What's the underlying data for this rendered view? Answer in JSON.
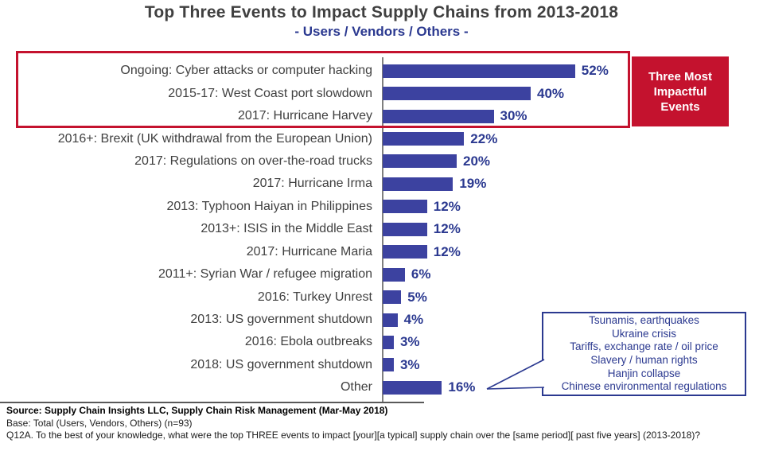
{
  "title": "Top Three Events to Impact Supply Chains from 2013-2018",
  "subtitle": "- Users / Vendors / Others -",
  "highlight_box": {
    "label": "Three Most Impactful Events"
  },
  "chart_data": {
    "type": "bar",
    "orientation": "horizontal",
    "unit": "%",
    "categories": [
      "Ongoing: Cyber attacks or computer hacking",
      "2015-17: West Coast port slowdown",
      "2017: Hurricane Harvey",
      "2016+: Brexit (UK withdrawal from the European Union)",
      "2017: Regulations on over-the-road trucks",
      "2017: Hurricane Irma",
      "2013: Typhoon Haiyan in Philippines",
      "2013+: ISIS in the Middle East",
      "2017: Hurricane Maria",
      "2011+: Syrian War / refugee migration",
      "2016: Turkey Unrest",
      "2013: US government shutdown",
      "2016: Ebola outbreaks",
      "2018: US government shutdown",
      "Other"
    ],
    "values": [
      52,
      40,
      30,
      22,
      20,
      19,
      12,
      12,
      12,
      6,
      5,
      4,
      3,
      3,
      16
    ],
    "highlighted_top_three": [
      "Ongoing: Cyber attacks or computer hacking",
      "2015-17: West Coast port slowdown",
      "2017: Hurricane Harvey"
    ],
    "legend_position": "none",
    "grid": false
  },
  "other_callout": {
    "items": [
      "Tsunamis, earthquakes",
      "Ukraine crisis",
      "Tariffs, exchange rate / oil price",
      "Slavery / human rights",
      "Hanjin collapse",
      "Chinese environmental regulations"
    ]
  },
  "footer": {
    "source": "Source:  Supply Chain Insights LLC, Supply Chain Risk Management (Mar-May 2018)",
    "base": "Base: Total (Users, Vendors, Others) (n=93)",
    "question": "Q12A. To the best of your knowledge, what were the top THREE events to impact [your][a typical] supply chain over the [same period][ past five years] (2013-2018)?"
  },
  "colors": {
    "bar": "#3C42A0",
    "blue_text": "#2B3990",
    "red": "#C4122E",
    "label_text": "#404040",
    "axis": "#7F7F7F"
  }
}
